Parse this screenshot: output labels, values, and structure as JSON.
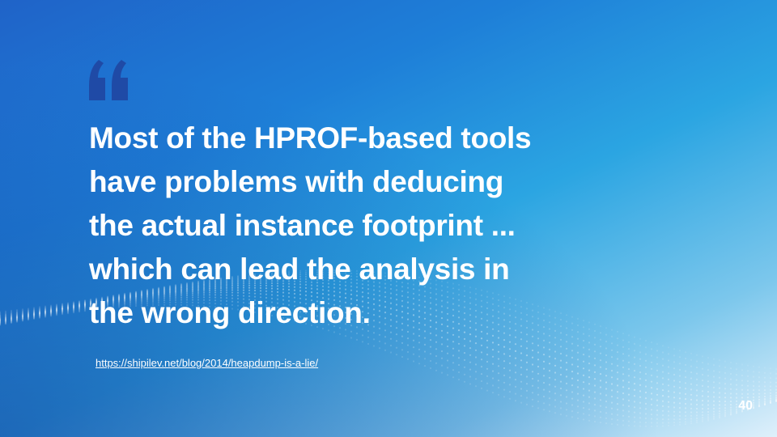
{
  "quote": {
    "lines": [
      "Most of the HPROF-based tools",
      "have problems with deducing",
      "the actual instance footprint ...",
      "which can lead the analysis in",
      "the wrong direction."
    ]
  },
  "source": {
    "link_text": "https://shipilev.net/blog/2014/heapdump-is-a-lie/"
  },
  "slide": {
    "page_number": "40"
  },
  "colors": {
    "quote_mark": "#1f4aa6",
    "text": "#ffffff"
  }
}
